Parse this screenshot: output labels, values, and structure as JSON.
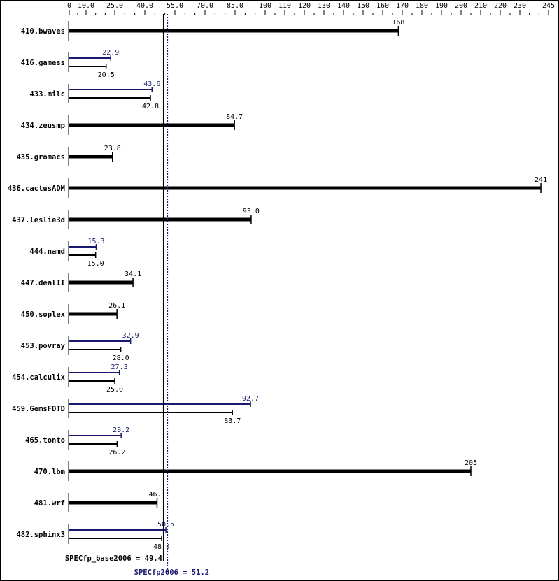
{
  "chart_data": {
    "type": "bar",
    "orientation": "horizontal",
    "title": "",
    "xlabel": "",
    "ylabel": "",
    "axis": {
      "ticks": [
        0,
        10.0,
        25.0,
        40.0,
        55.0,
        70.0,
        85.0,
        100,
        110,
        120,
        130,
        140,
        150,
        160,
        170,
        180,
        190,
        200,
        210,
        220,
        230,
        245
      ],
      "tick_labels": [
        "0",
        "10.0",
        "25.0",
        "40.0",
        "55.0",
        "70.0",
        "85.0",
        "100",
        "110",
        "120",
        "130",
        "140",
        "150",
        "160",
        "170",
        "180",
        "190",
        "200",
        "210",
        "220",
        "230",
        "245"
      ],
      "position": "top",
      "range": [
        0,
        245
      ]
    },
    "colors": {
      "base": "#000000",
      "peak": "#191970"
    },
    "series": [
      {
        "name": "SPECfp_base2006",
        "color": "#000000"
      },
      {
        "name": "SPECfp2006",
        "color": "#191970"
      }
    ],
    "benchmarks": [
      {
        "name": "410.bwaves",
        "base": 168,
        "peak": null,
        "base_label": "168"
      },
      {
        "name": "416.gamess",
        "base": 20.5,
        "peak": 22.9,
        "base_label": "20.5",
        "peak_label": "22.9"
      },
      {
        "name": "433.milc",
        "base": 42.8,
        "peak": 43.6,
        "base_label": "42.8",
        "peak_label": "43.6"
      },
      {
        "name": "434.zeusmp",
        "base": 84.7,
        "peak": null,
        "base_label": "84.7"
      },
      {
        "name": "435.gromacs",
        "base": 23.8,
        "peak": null,
        "base_label": "23.8"
      },
      {
        "name": "436.cactusADM",
        "base": 241,
        "peak": null,
        "base_label": "241"
      },
      {
        "name": "437.leslie3d",
        "base": 93.0,
        "peak": null,
        "base_label": "93.0"
      },
      {
        "name": "444.namd",
        "base": 15.0,
        "peak": 15.3,
        "base_label": "15.0",
        "peak_label": "15.3"
      },
      {
        "name": "447.dealII",
        "base": 34.1,
        "peak": null,
        "base_label": "34.1"
      },
      {
        "name": "450.soplex",
        "base": 26.1,
        "peak": null,
        "base_label": "26.1"
      },
      {
        "name": "453.povray",
        "base": 28.0,
        "peak": 32.9,
        "base_label": "28.0",
        "peak_label": "32.9"
      },
      {
        "name": "454.calculix",
        "base": 25.0,
        "peak": 27.3,
        "base_label": "25.0",
        "peak_label": "27.3"
      },
      {
        "name": "459.GemsFDTD",
        "base": 83.7,
        "peak": 92.7,
        "base_label": "83.7",
        "peak_label": "92.7"
      },
      {
        "name": "465.tonto",
        "base": 26.2,
        "peak": 28.2,
        "base_label": "26.2",
        "peak_label": "28.2"
      },
      {
        "name": "470.lbm",
        "base": 205,
        "peak": null,
        "base_label": "205"
      },
      {
        "name": "481.wrf",
        "base": 46.1,
        "peak": null,
        "base_label": "46.1"
      },
      {
        "name": "482.sphinx3",
        "base": 48.4,
        "peak": 50.5,
        "base_label": "48.4",
        "peak_label": "50.5"
      }
    ],
    "summary": {
      "base_label": "SPECfp_base2006 = 49.4",
      "base_value": 49.4,
      "peak_label": "SPECfp2006 = 51.2",
      "peak_value": 51.2
    },
    "grid": false,
    "legend": "none"
  }
}
